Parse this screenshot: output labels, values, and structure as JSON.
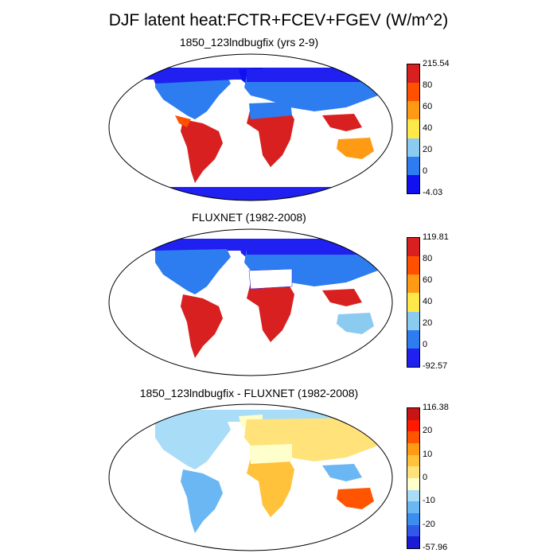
{
  "figure": {
    "title": "DJF latent heat:FCTR+FCEV+FGEV (W/m^2)"
  },
  "panels": [
    {
      "title": "1850_123lndbugfix (yrs 2-9)",
      "colors": [
        "#1010f0",
        "#2d7cf0",
        "#8ccbf0",
        "#ffe84a",
        "#ff9a14",
        "#ff5000",
        "#d82020"
      ],
      "labels": [
        "215.54",
        "80",
        "60",
        "40",
        "20",
        "0",
        "-4.03"
      ]
    },
    {
      "title": "FLUXNET (1982-2008)",
      "colors": [
        "#2020f0",
        "#2d7cf0",
        "#8ccbf0",
        "#ffe84a",
        "#ff9a14",
        "#ff5000",
        "#d82020"
      ],
      "labels": [
        "119.81",
        "80",
        "60",
        "40",
        "20",
        "0",
        "-92.57"
      ]
    },
    {
      "title": "1850_123lndbugfix - FLUXNET (1982-2008)",
      "colors": [
        "#1a1ad8",
        "#2f59e6",
        "#3b8ef0",
        "#6ab7f4",
        "#a8dcf7",
        "#ffffcc",
        "#ffe37a",
        "#ffc23a",
        "#ff9a14",
        "#ff5500",
        "#ff1a00",
        "#c81414"
      ],
      "labels": [
        "116.38",
        "20",
        "10",
        "0",
        "-10",
        "-20",
        "-57.96"
      ]
    }
  ]
}
